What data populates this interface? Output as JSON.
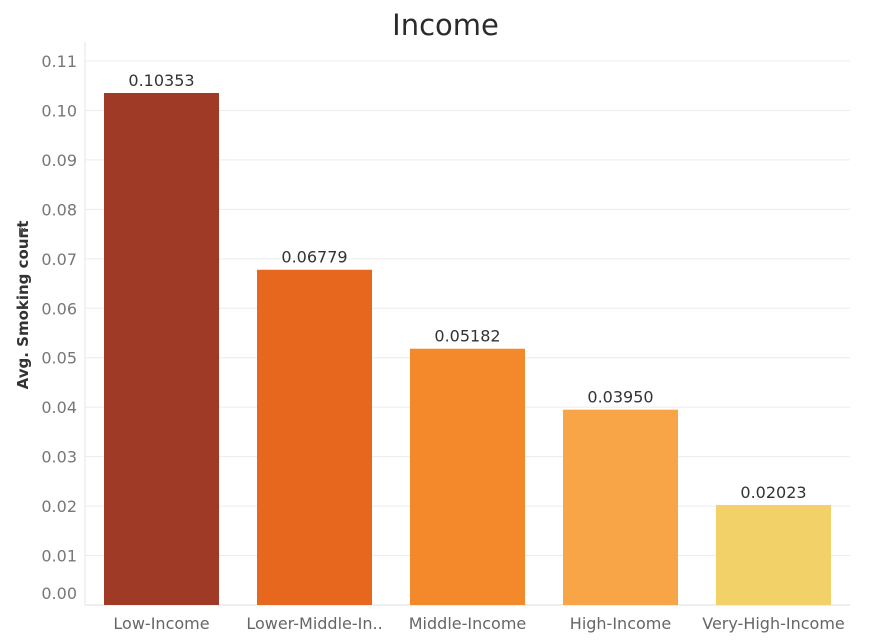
{
  "chart_data": {
    "type": "bar",
    "title": "Income",
    "xlabel": "",
    "ylabel": "Avg. Smoking count",
    "ylabel_icon": "sort-icon",
    "ylim": [
      0,
      0.11
    ],
    "yticks": [
      "0.00",
      "0.01",
      "0.02",
      "0.03",
      "0.04",
      "0.05",
      "0.06",
      "0.07",
      "0.08",
      "0.09",
      "0.10",
      "0.11"
    ],
    "grid": true,
    "categories": [
      "Low-Income",
      "Lower-Middle-In..",
      "Middle-Income",
      "High-Income",
      "Very-High-Income"
    ],
    "values": [
      0.10353,
      0.06779,
      0.05182,
      0.0395,
      0.02023
    ],
    "value_labels": [
      "0.10353",
      "0.06779",
      "0.05182",
      "0.03950",
      "0.02023"
    ],
    "colors": [
      "#9e3a26",
      "#e8671e",
      "#f4892c",
      "#f8a548",
      "#f2d168"
    ]
  }
}
